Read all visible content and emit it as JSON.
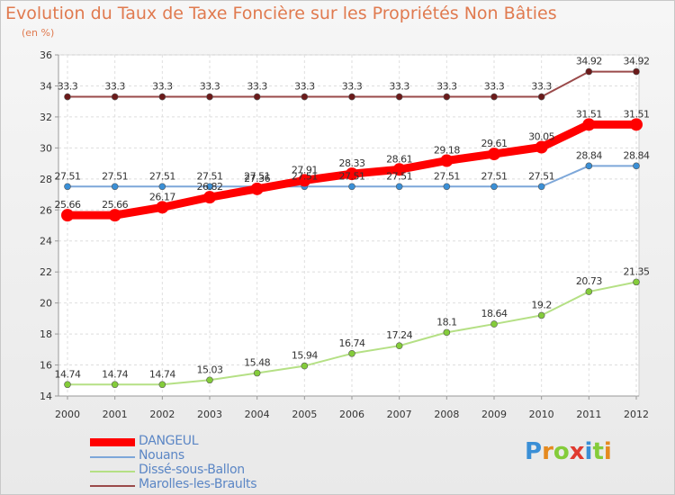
{
  "chart_data": {
    "type": "line",
    "title": "Evolution du Taux de Taxe Foncière sur les Propriétés Non Bâties",
    "ylabel": "(en %)",
    "xlabel": "",
    "x": [
      "2000",
      "2001",
      "2002",
      "2003",
      "2004",
      "2005",
      "2006",
      "2007",
      "2008",
      "2009",
      "2010",
      "2011",
      "2012"
    ],
    "ylim": [
      14,
      36
    ],
    "yticks": [
      "14",
      "16",
      "18",
      "20",
      "22",
      "24",
      "26",
      "28",
      "30",
      "32",
      "34",
      "36"
    ],
    "grid": true,
    "legend_position": "bottom-left",
    "series": [
      {
        "name": "DANGEUL",
        "color": "#ff0000",
        "marker": "#ff0000",
        "values": [
          25.66,
          25.66,
          26.17,
          26.82,
          27.36,
          27.91,
          28.33,
          28.61,
          29.18,
          29.61,
          30.05,
          31.51,
          31.51
        ],
        "labels": [
          "25.66",
          "25.66",
          "26.17",
          "26.82",
          "27.36",
          "27.91",
          "28.33",
          "28.61",
          "29.18",
          "29.61",
          "30.05",
          "31.51",
          "31.51"
        ]
      },
      {
        "name": "Nouans",
        "color": "#7da7d9",
        "marker": "#3a8fd6",
        "values": [
          27.51,
          27.51,
          27.51,
          27.51,
          27.51,
          27.51,
          27.51,
          27.51,
          27.51,
          27.51,
          27.51,
          28.84,
          28.84
        ],
        "labels": [
          "27.51",
          "27.51",
          "27.51",
          "27.51",
          "27.51",
          "27.51",
          "27.51",
          "27.51",
          "27.51",
          "27.51",
          "27.51",
          "28.84",
          "28.84"
        ]
      },
      {
        "name": "Dissé-sous-Ballon",
        "color": "#b5e085",
        "marker": "#84cc3a",
        "values": [
          14.74,
          14.74,
          14.74,
          15.03,
          15.48,
          15.94,
          16.74,
          17.24,
          18.1,
          18.64,
          19.2,
          20.73,
          21.35
        ],
        "labels": [
          "14.74",
          "14.74",
          "14.74",
          "15.03",
          "15.48",
          "15.94",
          "16.74",
          "17.24",
          "18.1",
          "18.64",
          "19.2",
          "20.73",
          "21.35"
        ]
      },
      {
        "name": "Marolles-les-Braults",
        "color": "#9a4a4a",
        "marker": "#6b1a1a",
        "values": [
          33.3,
          33.3,
          33.3,
          33.3,
          33.3,
          33.3,
          33.3,
          33.3,
          33.3,
          33.3,
          33.3,
          34.92,
          34.92
        ],
        "labels": [
          "33.3",
          "33.3",
          "33.3",
          "33.3",
          "33.3",
          "33.3",
          "33.3",
          "33.3",
          "33.3",
          "33.3",
          "33.3",
          "34.92",
          "34.92"
        ]
      }
    ]
  },
  "logo": {
    "letters": [
      "P",
      "r",
      "o",
      "x",
      "i",
      "t",
      "i"
    ],
    "colors": [
      "#3a8fd6",
      "#e58a1f",
      "#84cc3a",
      "#e03a2f",
      "#3a8fd6",
      "#84cc3a",
      "#e58a1f"
    ]
  }
}
